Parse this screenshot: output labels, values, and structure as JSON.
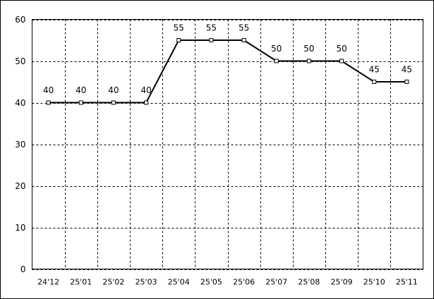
{
  "chart_data": {
    "type": "line",
    "categories": [
      "24'12",
      "25'01",
      "25'02",
      "25'03",
      "25'04",
      "25'05",
      "25'06",
      "25'07",
      "25'08",
      "25'09",
      "25'10",
      "25'11"
    ],
    "series": [
      {
        "values": [
          40,
          40,
          40,
          40,
          55,
          55,
          55,
          50,
          50,
          50,
          45,
          45
        ],
        "color": "#000000"
      }
    ],
    "ylim": [
      0,
      60
    ],
    "yticks": [
      0,
      10,
      20,
      30,
      40,
      50,
      60
    ],
    "grid": true
  }
}
